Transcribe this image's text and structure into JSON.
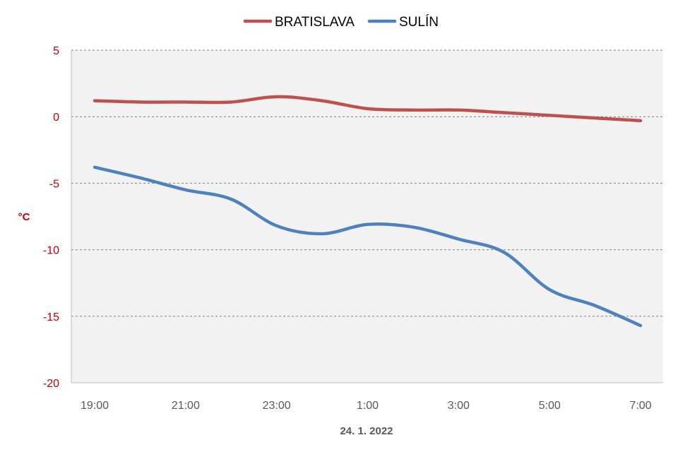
{
  "chart_data": {
    "type": "line",
    "title": "",
    "xlabel": "24. 1. 2022",
    "ylabel": "°C",
    "ylim": [
      -20,
      5
    ],
    "yticks": [
      5,
      0,
      -5,
      -10,
      -15,
      -20
    ],
    "ytick_labels": [
      "5",
      "0",
      "-5",
      "-10",
      "-15",
      "-20"
    ],
    "categories": [
      "19:00",
      "20:00",
      "21:00",
      "22:00",
      "23:00",
      "0:00",
      "1:00",
      "2:00",
      "3:00",
      "4:00",
      "5:00",
      "6:00",
      "7:00"
    ],
    "xtick_labels": [
      "19:00",
      "21:00",
      "23:00",
      "1:00",
      "3:00",
      "5:00",
      "7:00"
    ],
    "grid": true,
    "legend_position": "top-center",
    "plot_background": "#f2f2f2",
    "series": [
      {
        "name": "BRATISLAVA",
        "color": "#c0504d",
        "values": [
          1.2,
          1.1,
          1.1,
          1.1,
          1.5,
          1.2,
          0.6,
          0.5,
          0.5,
          0.3,
          0.1,
          -0.1,
          -0.3
        ]
      },
      {
        "name": "SULÍN",
        "color": "#4f81bd",
        "values": [
          -3.8,
          -4.6,
          -5.5,
          -6.2,
          -8.2,
          -8.8,
          -8.1,
          -8.3,
          -9.2,
          -10.2,
          -13.0,
          -14.2,
          -15.7
        ]
      }
    ]
  }
}
